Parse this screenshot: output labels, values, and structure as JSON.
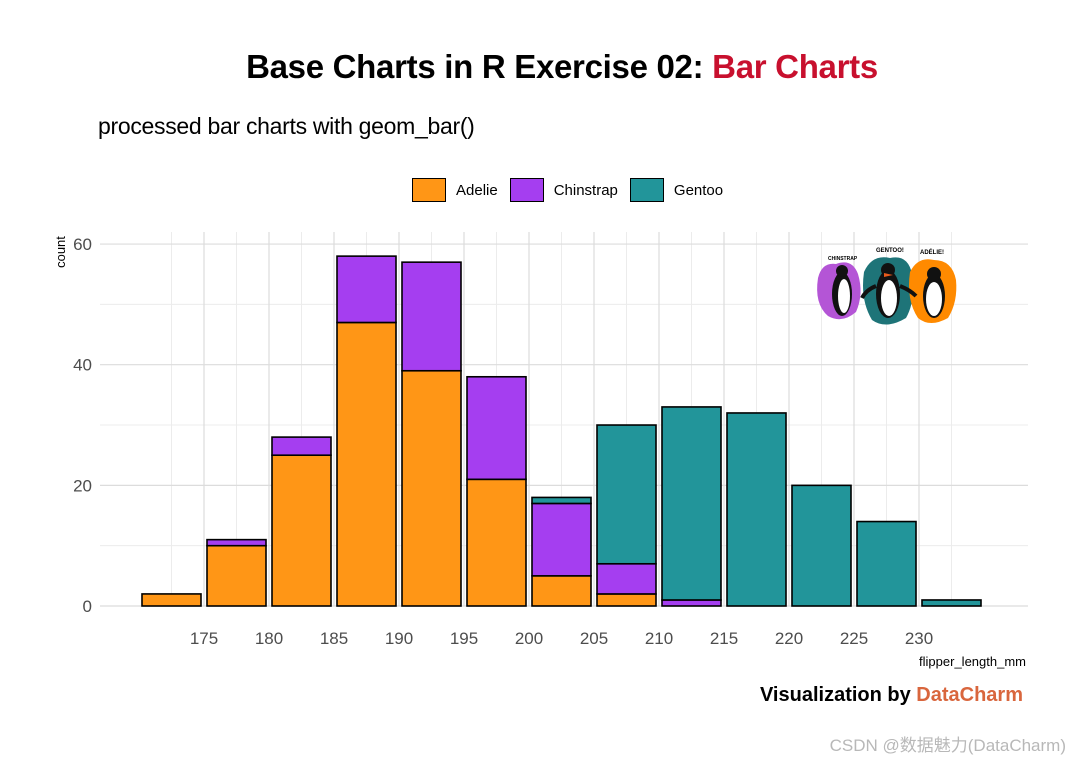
{
  "header": {
    "title_main": "Base Charts in R Exercise 02: ",
    "title_accent": "Bar Charts",
    "subtitle": "processed bar charts with geom_bar()"
  },
  "colors": {
    "Adelie": "#FF9616",
    "Chinstrap": "#A53EF0",
    "Gentoo": "#22959A",
    "accent": "#C8102E",
    "brand": "#D9663D"
  },
  "caption": {
    "prefix": "Visualization by ",
    "brand": "DataCharm"
  },
  "watermark": "CSDN @数据魅力(DataCharm)",
  "logo": {
    "labels": [
      "CHINSTRAP",
      "GENTOO!",
      "ADÉLIE!"
    ]
  },
  "chart_data": {
    "type": "bar",
    "stacked": true,
    "xlabel": "flipper_length_mm",
    "ylabel": "count",
    "ylim": [
      0,
      62
    ],
    "xlim": [
      168.5,
      236
    ],
    "x_ticks": [
      175,
      180,
      185,
      190,
      195,
      200,
      205,
      210,
      215,
      220,
      225,
      230
    ],
    "y_ticks": [
      0,
      20,
      40,
      60
    ],
    "grid": true,
    "legend_position": "top",
    "bin_centers": [
      172.5,
      177.5,
      182.5,
      187.5,
      192.5,
      197.5,
      202.5,
      207.5,
      212.5,
      217.5,
      222.5,
      227.5,
      232.5
    ],
    "bin_width": 5,
    "series": [
      {
        "name": "Adelie",
        "values": [
          2,
          10,
          25,
          47,
          39,
          21,
          5,
          2,
          0,
          0,
          0,
          0,
          0
        ]
      },
      {
        "name": "Chinstrap",
        "values": [
          0,
          1,
          3,
          11,
          18,
          17,
          12,
          5,
          1,
          0,
          0,
          0,
          0
        ]
      },
      {
        "name": "Gentoo",
        "values": [
          0,
          0,
          0,
          0,
          0,
          0,
          1,
          23,
          32,
          32,
          20,
          14,
          1
        ]
      }
    ]
  }
}
